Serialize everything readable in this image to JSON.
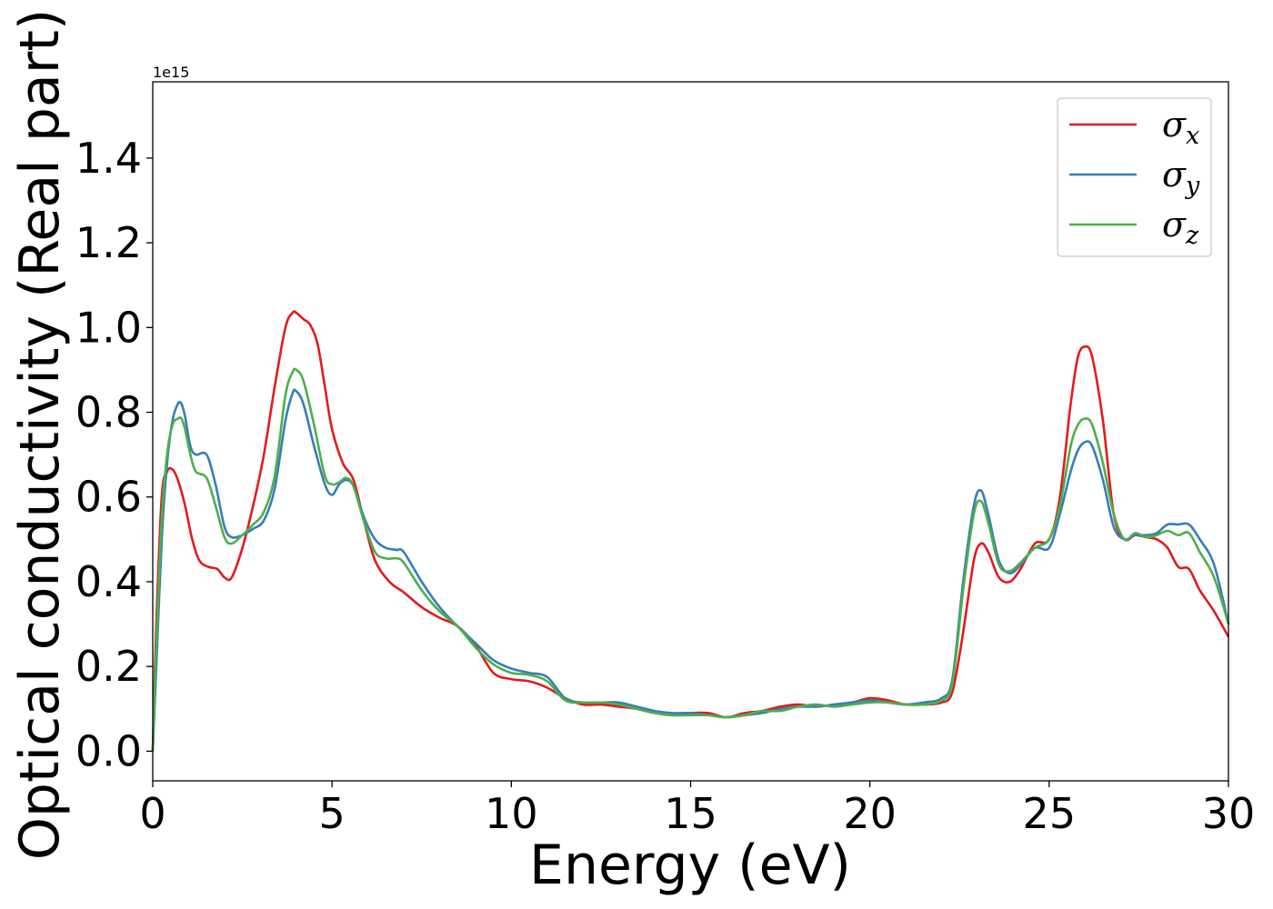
{
  "chart_data": {
    "type": "line",
    "title": "",
    "xlabel": "Energy (eV)",
    "ylabel": "Optical conductivity (Real part)",
    "y_offset_text": "1e15",
    "xlim": [
      0,
      30
    ],
    "ylim": [
      -0.07,
      1.58
    ],
    "y_scale_factor": "1e15",
    "xticks": [
      0,
      5,
      10,
      15,
      20,
      25,
      30
    ],
    "xtick_labels": [
      "0",
      "5",
      "10",
      "15",
      "20",
      "25",
      "30"
    ],
    "yticks": [
      0.0,
      0.2,
      0.4,
      0.6,
      0.8,
      1.0,
      1.2,
      1.4
    ],
    "ytick_labels": [
      "0.0",
      "0.2",
      "0.4",
      "0.6",
      "0.8",
      "1.0",
      "1.2",
      "1.4"
    ],
    "grid": false,
    "legend_position": "top-right",
    "series": [
      {
        "name": "σx",
        "legend_base": "σ",
        "legend_sub": "x",
        "color": "#e41a1c",
        "x": [
          0,
          0.1,
          0.25,
          0.4,
          0.55,
          0.7,
          0.9,
          1.1,
          1.3,
          1.55,
          1.8,
          2.0,
          2.2,
          2.5,
          2.8,
          3.1,
          3.4,
          3.7,
          3.9,
          4.0,
          4.2,
          4.4,
          4.6,
          4.8,
          5.0,
          5.3,
          5.6,
          5.9,
          6.2,
          6.6,
          7.0,
          7.5,
          8.0,
          8.5,
          9.0,
          9.5,
          10.0,
          10.5,
          11.0,
          11.5,
          12.0,
          12.5,
          13.0,
          13.5,
          14.0,
          14.5,
          15.0,
          15.5,
          16.0,
          16.5,
          17.0,
          17.5,
          18.0,
          18.5,
          19.0,
          19.5,
          20.0,
          20.5,
          21.0,
          21.5,
          22.0,
          22.3,
          22.6,
          22.9,
          23.1,
          23.3,
          23.6,
          23.9,
          24.2,
          24.6,
          25.0,
          25.3,
          25.6,
          25.8,
          26.0,
          26.2,
          26.5,
          26.8,
          27.1,
          27.4,
          27.7,
          28.0,
          28.3,
          28.6,
          28.9,
          29.2,
          29.6,
          30.0
        ],
        "y": [
          0.0,
          0.3,
          0.6,
          0.66,
          0.665,
          0.64,
          0.58,
          0.5,
          0.45,
          0.435,
          0.43,
          0.41,
          0.41,
          0.48,
          0.58,
          0.7,
          0.86,
          1.0,
          1.035,
          1.035,
          1.02,
          1.005,
          0.96,
          0.86,
          0.76,
          0.68,
          0.64,
          0.54,
          0.45,
          0.4,
          0.375,
          0.34,
          0.315,
          0.295,
          0.25,
          0.185,
          0.17,
          0.165,
          0.15,
          0.125,
          0.11,
          0.11,
          0.105,
          0.1,
          0.09,
          0.085,
          0.09,
          0.09,
          0.08,
          0.09,
          0.095,
          0.105,
          0.11,
          0.105,
          0.11,
          0.115,
          0.125,
          0.12,
          0.11,
          0.11,
          0.115,
          0.14,
          0.28,
          0.45,
          0.49,
          0.47,
          0.41,
          0.4,
          0.43,
          0.49,
          0.5,
          0.6,
          0.82,
          0.93,
          0.955,
          0.93,
          0.78,
          0.56,
          0.5,
          0.51,
          0.505,
          0.5,
          0.48,
          0.435,
          0.43,
          0.38,
          0.33,
          0.27
        ]
      },
      {
        "name": "σy",
        "legend_base": "σ",
        "legend_sub": "y",
        "color": "#377eb8",
        "x": [
          0,
          0.1,
          0.25,
          0.4,
          0.55,
          0.7,
          0.8,
          0.9,
          1.05,
          1.2,
          1.5,
          1.75,
          2.0,
          2.2,
          2.5,
          2.8,
          3.1,
          3.4,
          3.7,
          3.9,
          4.0,
          4.2,
          4.5,
          4.8,
          5.0,
          5.2,
          5.4,
          5.6,
          5.9,
          6.2,
          6.5,
          6.8,
          7.0,
          7.5,
          8.0,
          8.5,
          9.0,
          9.5,
          10.0,
          10.5,
          11.0,
          11.5,
          12.0,
          12.5,
          13.0,
          13.5,
          14.0,
          14.5,
          15.0,
          15.5,
          16.0,
          16.5,
          17.0,
          17.5,
          18.0,
          18.5,
          19.0,
          19.5,
          20.0,
          20.5,
          21.0,
          21.5,
          22.0,
          22.3,
          22.6,
          22.9,
          23.1,
          23.3,
          23.6,
          23.9,
          24.2,
          24.6,
          25.0,
          25.3,
          25.6,
          25.8,
          26.0,
          26.2,
          26.5,
          26.8,
          27.1,
          27.4,
          27.7,
          28.0,
          28.3,
          28.6,
          28.9,
          29.2,
          29.6,
          30.0
        ],
        "y": [
          0.0,
          0.2,
          0.5,
          0.68,
          0.78,
          0.82,
          0.82,
          0.79,
          0.72,
          0.7,
          0.7,
          0.63,
          0.53,
          0.505,
          0.51,
          0.525,
          0.545,
          0.62,
          0.78,
          0.845,
          0.85,
          0.82,
          0.72,
          0.63,
          0.605,
          0.63,
          0.64,
          0.625,
          0.55,
          0.5,
          0.48,
          0.475,
          0.47,
          0.4,
          0.34,
          0.295,
          0.255,
          0.215,
          0.195,
          0.185,
          0.175,
          0.125,
          0.115,
          0.115,
          0.115,
          0.105,
          0.095,
          0.09,
          0.09,
          0.085,
          0.08,
          0.085,
          0.09,
          0.1,
          0.105,
          0.105,
          0.11,
          0.115,
          0.12,
          0.115,
          0.11,
          0.115,
          0.125,
          0.17,
          0.4,
          0.58,
          0.615,
          0.56,
          0.45,
          0.42,
          0.44,
          0.48,
          0.48,
          0.56,
          0.66,
          0.71,
          0.73,
          0.72,
          0.64,
          0.53,
          0.5,
          0.51,
          0.51,
          0.515,
          0.535,
          0.535,
          0.535,
          0.5,
          0.44,
          0.3
        ]
      },
      {
        "name": "σz",
        "legend_base": "σ",
        "legend_sub": "z",
        "color": "#4daf4a",
        "x": [
          0,
          0.1,
          0.25,
          0.4,
          0.55,
          0.7,
          0.8,
          0.9,
          1.05,
          1.2,
          1.5,
          1.75,
          2.0,
          2.2,
          2.5,
          2.8,
          3.1,
          3.4,
          3.7,
          3.9,
          4.0,
          4.2,
          4.5,
          4.8,
          5.0,
          5.2,
          5.4,
          5.6,
          5.9,
          6.2,
          6.5,
          6.8,
          7.0,
          7.5,
          8.0,
          8.5,
          9.0,
          9.5,
          10.0,
          10.5,
          11.0,
          11.5,
          12.0,
          12.5,
          13.0,
          13.5,
          14.0,
          14.5,
          15.0,
          15.5,
          16.0,
          16.5,
          17.0,
          17.5,
          18.0,
          18.5,
          19.0,
          19.5,
          20.0,
          20.5,
          21.0,
          21.5,
          22.0,
          22.3,
          22.6,
          22.9,
          23.1,
          23.3,
          23.6,
          23.9,
          24.2,
          24.6,
          25.0,
          25.3,
          25.6,
          25.8,
          26.0,
          26.2,
          26.5,
          26.8,
          27.1,
          27.4,
          27.7,
          28.0,
          28.3,
          28.6,
          28.9,
          29.2,
          29.6,
          30.0
        ],
        "y": [
          0.0,
          0.25,
          0.55,
          0.7,
          0.77,
          0.785,
          0.785,
          0.76,
          0.7,
          0.66,
          0.645,
          0.58,
          0.505,
          0.49,
          0.51,
          0.535,
          0.565,
          0.65,
          0.84,
          0.895,
          0.9,
          0.875,
          0.77,
          0.65,
          0.63,
          0.635,
          0.645,
          0.625,
          0.54,
          0.47,
          0.455,
          0.455,
          0.445,
          0.38,
          0.33,
          0.295,
          0.245,
          0.205,
          0.185,
          0.18,
          0.165,
          0.12,
          0.115,
          0.115,
          0.11,
          0.1,
          0.09,
          0.085,
          0.085,
          0.085,
          0.08,
          0.085,
          0.095,
          0.095,
          0.105,
          0.11,
          0.105,
          0.11,
          0.115,
          0.115,
          0.11,
          0.11,
          0.12,
          0.16,
          0.38,
          0.56,
          0.59,
          0.54,
          0.44,
          0.425,
          0.445,
          0.48,
          0.5,
          0.58,
          0.72,
          0.77,
          0.785,
          0.77,
          0.68,
          0.56,
          0.5,
          0.515,
          0.505,
          0.51,
          0.52,
          0.51,
          0.515,
          0.47,
          0.41,
          0.3
        ]
      }
    ]
  }
}
